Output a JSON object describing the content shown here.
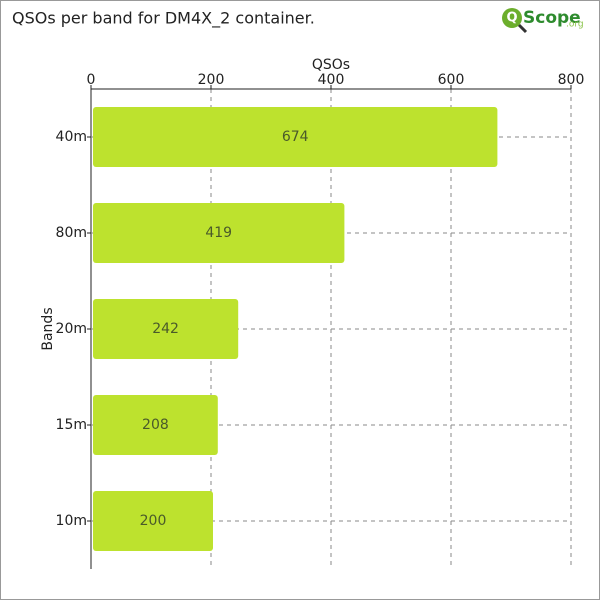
{
  "chart_data": {
    "type": "bar",
    "orientation": "horizontal",
    "title": "QSOs per band for DM4X_2 container.",
    "logo": {
      "mark": "Q",
      "name": "Scope",
      "suffix": ".org"
    },
    "x_label": "QSOs",
    "y_label": "Bands",
    "categories": [
      "40m",
      "80m",
      "20m",
      "15m",
      "10m"
    ],
    "values": [
      674,
      419,
      242,
      208,
      200
    ],
    "color": "#bde22e",
    "xlim": [
      0,
      800
    ],
    "xticks": [
      0,
      200,
      400,
      600,
      800
    ],
    "grid": true
  }
}
